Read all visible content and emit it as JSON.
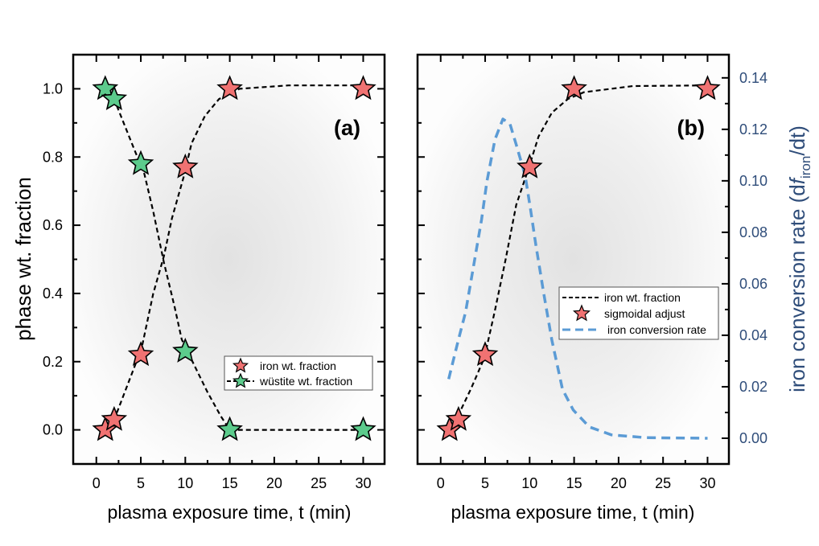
{
  "chart_data": [
    {
      "type": "scatter",
      "panel_label": "(a)",
      "xlabel": "plasma exposure time, t (min)",
      "ylabel": "phase wt. fraction",
      "xlim": [
        -2.6,
        32.4
      ],
      "ylim": [
        -0.1,
        1.1
      ],
      "xticks": [
        0,
        5,
        10,
        15,
        20,
        25,
        30
      ],
      "yticks": [
        "0.0",
        "0.2",
        "0.4",
        "0.6",
        "0.8",
        "1.0"
      ],
      "grid": false,
      "legend_position": "bottom-right",
      "series": [
        {
          "name": "iron wt. fraction",
          "marker": "star",
          "color": "#f07272",
          "x": [
            1,
            2,
            5,
            10,
            15,
            30
          ],
          "y": [
            0.0,
            0.03,
            0.22,
            0.77,
            1.0,
            1.0
          ],
          "fit_x": [
            2.3,
            5.1,
            6.4,
            7.6,
            8.5,
            9.8,
            10.7,
            12.2,
            13.8,
            16.1,
            21.6,
            30
          ],
          "fit_y": [
            0.05,
            0.24,
            0.4,
            0.51,
            0.62,
            0.74,
            0.84,
            0.92,
            0.97,
            1.0,
            1.01,
            1.01
          ]
        },
        {
          "name": "wüstite wt. fraction",
          "marker": "star",
          "color": "#5ccb8c",
          "x": [
            1,
            2,
            5,
            10,
            15,
            30
          ],
          "y": [
            1.0,
            0.97,
            0.78,
            0.23,
            0.0,
            0.0
          ],
          "fit_x": [
            2.3,
            4.3,
            5.4,
            6.4,
            7.6,
            8.8,
            9.6,
            11,
            12.5,
            14,
            15,
            30
          ],
          "fit_y": [
            0.95,
            0.82,
            0.75,
            0.64,
            0.49,
            0.36,
            0.265,
            0.19,
            0.11,
            0.04,
            0.0,
            0.0
          ]
        }
      ]
    },
    {
      "type": "line",
      "panel_label": "(b)",
      "xlabel": "plasma exposure time, t (min)",
      "ylabel_right": {
        "prefix": "iron conversion rate (d",
        "f": "f",
        "sub": "iron",
        "suffix": "/dt)"
      },
      "xlim": [
        -2.6,
        32.4
      ],
      "ylim": [
        -0.1,
        1.1
      ],
      "ylim_right": [
        -0.01,
        0.149
      ],
      "xticks": [
        0,
        5,
        10,
        15,
        20,
        25,
        30
      ],
      "yticks_right": [
        "0.00",
        "0.02",
        "0.04",
        "0.06",
        "0.08",
        "0.10",
        "0.12",
        "0.14"
      ],
      "grid": false,
      "legend_position": "center-right",
      "series": [
        {
          "name": "iron wt. fraction",
          "style": "dashed",
          "color": "#000000",
          "axis": "left",
          "x": [
            1,
            2.2,
            3.4,
            4.9,
            6.1,
            7.3,
            8.5,
            9.8,
            11,
            12.5,
            14.3,
            16.1,
            21.6,
            30
          ],
          "y": [
            0.0,
            0.055,
            0.12,
            0.21,
            0.35,
            0.5,
            0.66,
            0.76,
            0.86,
            0.93,
            0.97,
            0.99,
            1.008,
            1.01
          ]
        },
        {
          "name": "sigmoidal adjust",
          "marker": "star",
          "color": "#f07272",
          "axis": "left",
          "x": [
            1,
            2,
            5,
            10,
            15,
            30
          ],
          "y": [
            0.0,
            0.03,
            0.22,
            0.77,
            1.0,
            1.0
          ]
        },
        {
          "name": "iron conversion rate",
          "style": "dashed",
          "color": "#5b9bd5",
          "axis": "right",
          "x": [
            0.9,
            1.9,
            2.8,
            3.7,
            4.6,
            5.2,
            6.1,
            7.0,
            7.8,
            8.5,
            9.5,
            10.1,
            10.7,
            11.6,
            12.5,
            13.7,
            14.9,
            16.7,
            19.2,
            23.1,
            30
          ],
          "y": [
            0.023,
            0.037,
            0.049,
            0.067,
            0.085,
            0.0997,
            0.116,
            0.124,
            0.122,
            0.114,
            0.102,
            0.089,
            0.075,
            0.056,
            0.038,
            0.019,
            0.011,
            0.0044,
            0.0013,
            0.0002,
            0.0
          ]
        }
      ]
    }
  ]
}
